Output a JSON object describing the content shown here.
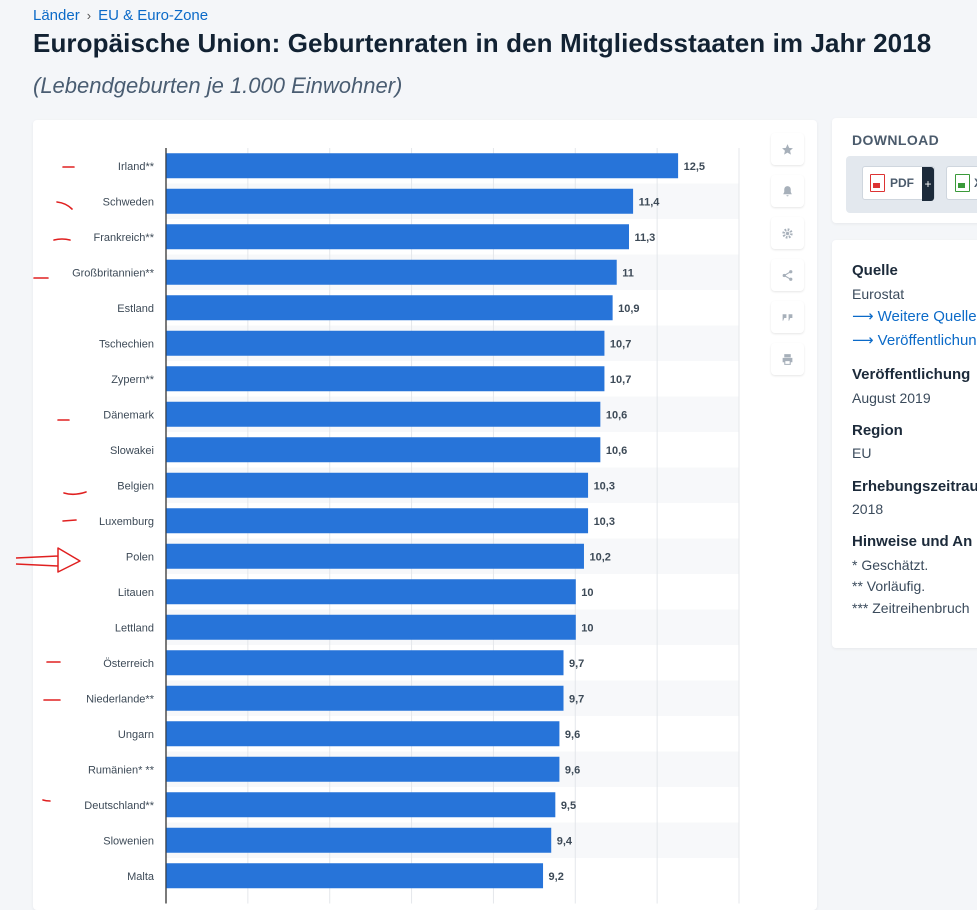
{
  "breadcrumb": {
    "item1": "Länder",
    "item2": "EU & Euro-Zone"
  },
  "page": {
    "title": "Europäische Union: Geburtenraten in den Mitgliedsstaaten im Jahr 2018",
    "subtitle": "(Lebendgeburten je 1.000 Einwohner)"
  },
  "toolbar": {
    "icons": [
      "star-icon",
      "bell-icon",
      "gear-icon",
      "share-icon",
      "quote-icon",
      "print-icon"
    ]
  },
  "download": {
    "title": "DOWNLOAD",
    "pdf_label": "PDF",
    "pdf_plus": "+",
    "xls_label": "X"
  },
  "info": {
    "source_heading": "Quelle",
    "source_value": "Eurostat",
    "link_more_sources": "Weitere Quellen",
    "link_publication": "Veröffentlichung",
    "published_heading": "Veröffentlichung",
    "published_value": "August 2019",
    "region_heading": "Region",
    "region_value": "EU",
    "period_heading": "Erhebungszeitraum",
    "period_value": "2018",
    "notes_heading": "Hinweise und An",
    "notes": [
      "* Geschätzt.",
      "** Vorläufig.",
      "*** Zeitreihenbruch"
    ]
  },
  "colors": {
    "bar": "#2774d9",
    "link": "#0b6ac8",
    "annotation": "#e02020"
  },
  "chart_data": {
    "type": "bar",
    "orientation": "horizontal",
    "title": "",
    "xlabel": "",
    "ylabel": "",
    "categories": [
      "Irland**",
      "Schweden",
      "Frankreich**",
      "Großbritannien**",
      "Estland",
      "Tschechien",
      "Zypern**",
      "Dänemark",
      "Slowakei",
      "Belgien",
      "Luxemburg",
      "Polen",
      "Litauen",
      "Lettland",
      "Österreich",
      "Niederlande**",
      "Ungarn",
      "Rumänien* **",
      "Deutschland**",
      "Slowenien",
      "Malta"
    ],
    "values": [
      12.5,
      11.4,
      11.3,
      11,
      10.9,
      10.7,
      10.7,
      10.6,
      10.6,
      10.3,
      10.3,
      10.2,
      10,
      10,
      9.7,
      9.7,
      9.6,
      9.6,
      9.5,
      9.4,
      9.2
    ],
    "value_labels": [
      "12,5",
      "11,4",
      "11,3",
      "11",
      "10,9",
      "10,7",
      "10,7",
      "10,6",
      "10,6",
      "10,3",
      "10,3",
      "10,2",
      "10",
      "10",
      "9,7",
      "9,7",
      "9,6",
      "9,6",
      "9,5",
      "9,4",
      "9,2"
    ],
    "xlim": [
      0,
      14
    ],
    "grid": true,
    "legend": "none"
  }
}
